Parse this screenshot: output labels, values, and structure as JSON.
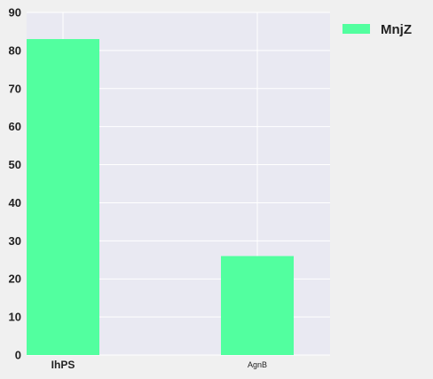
{
  "chart_data": {
    "type": "bar",
    "categories": [
      "IhPS",
      "AgnB"
    ],
    "series": [
      {
        "name": "MnjZ",
        "values": [
          83,
          26
        ]
      }
    ],
    "xlabel": "",
    "ylabel": "",
    "ylim": [
      0,
      90
    ],
    "yticks": [
      0,
      10,
      20,
      30,
      40,
      50,
      60,
      70,
      80,
      90
    ],
    "grid": true,
    "legend_position": "top-right, outside plot",
    "colors": {
      "bar": "#52ff9f",
      "plot_background": "#e9e9f2",
      "grid": "#ffffff",
      "figure_background": "#f0f0f0"
    }
  }
}
